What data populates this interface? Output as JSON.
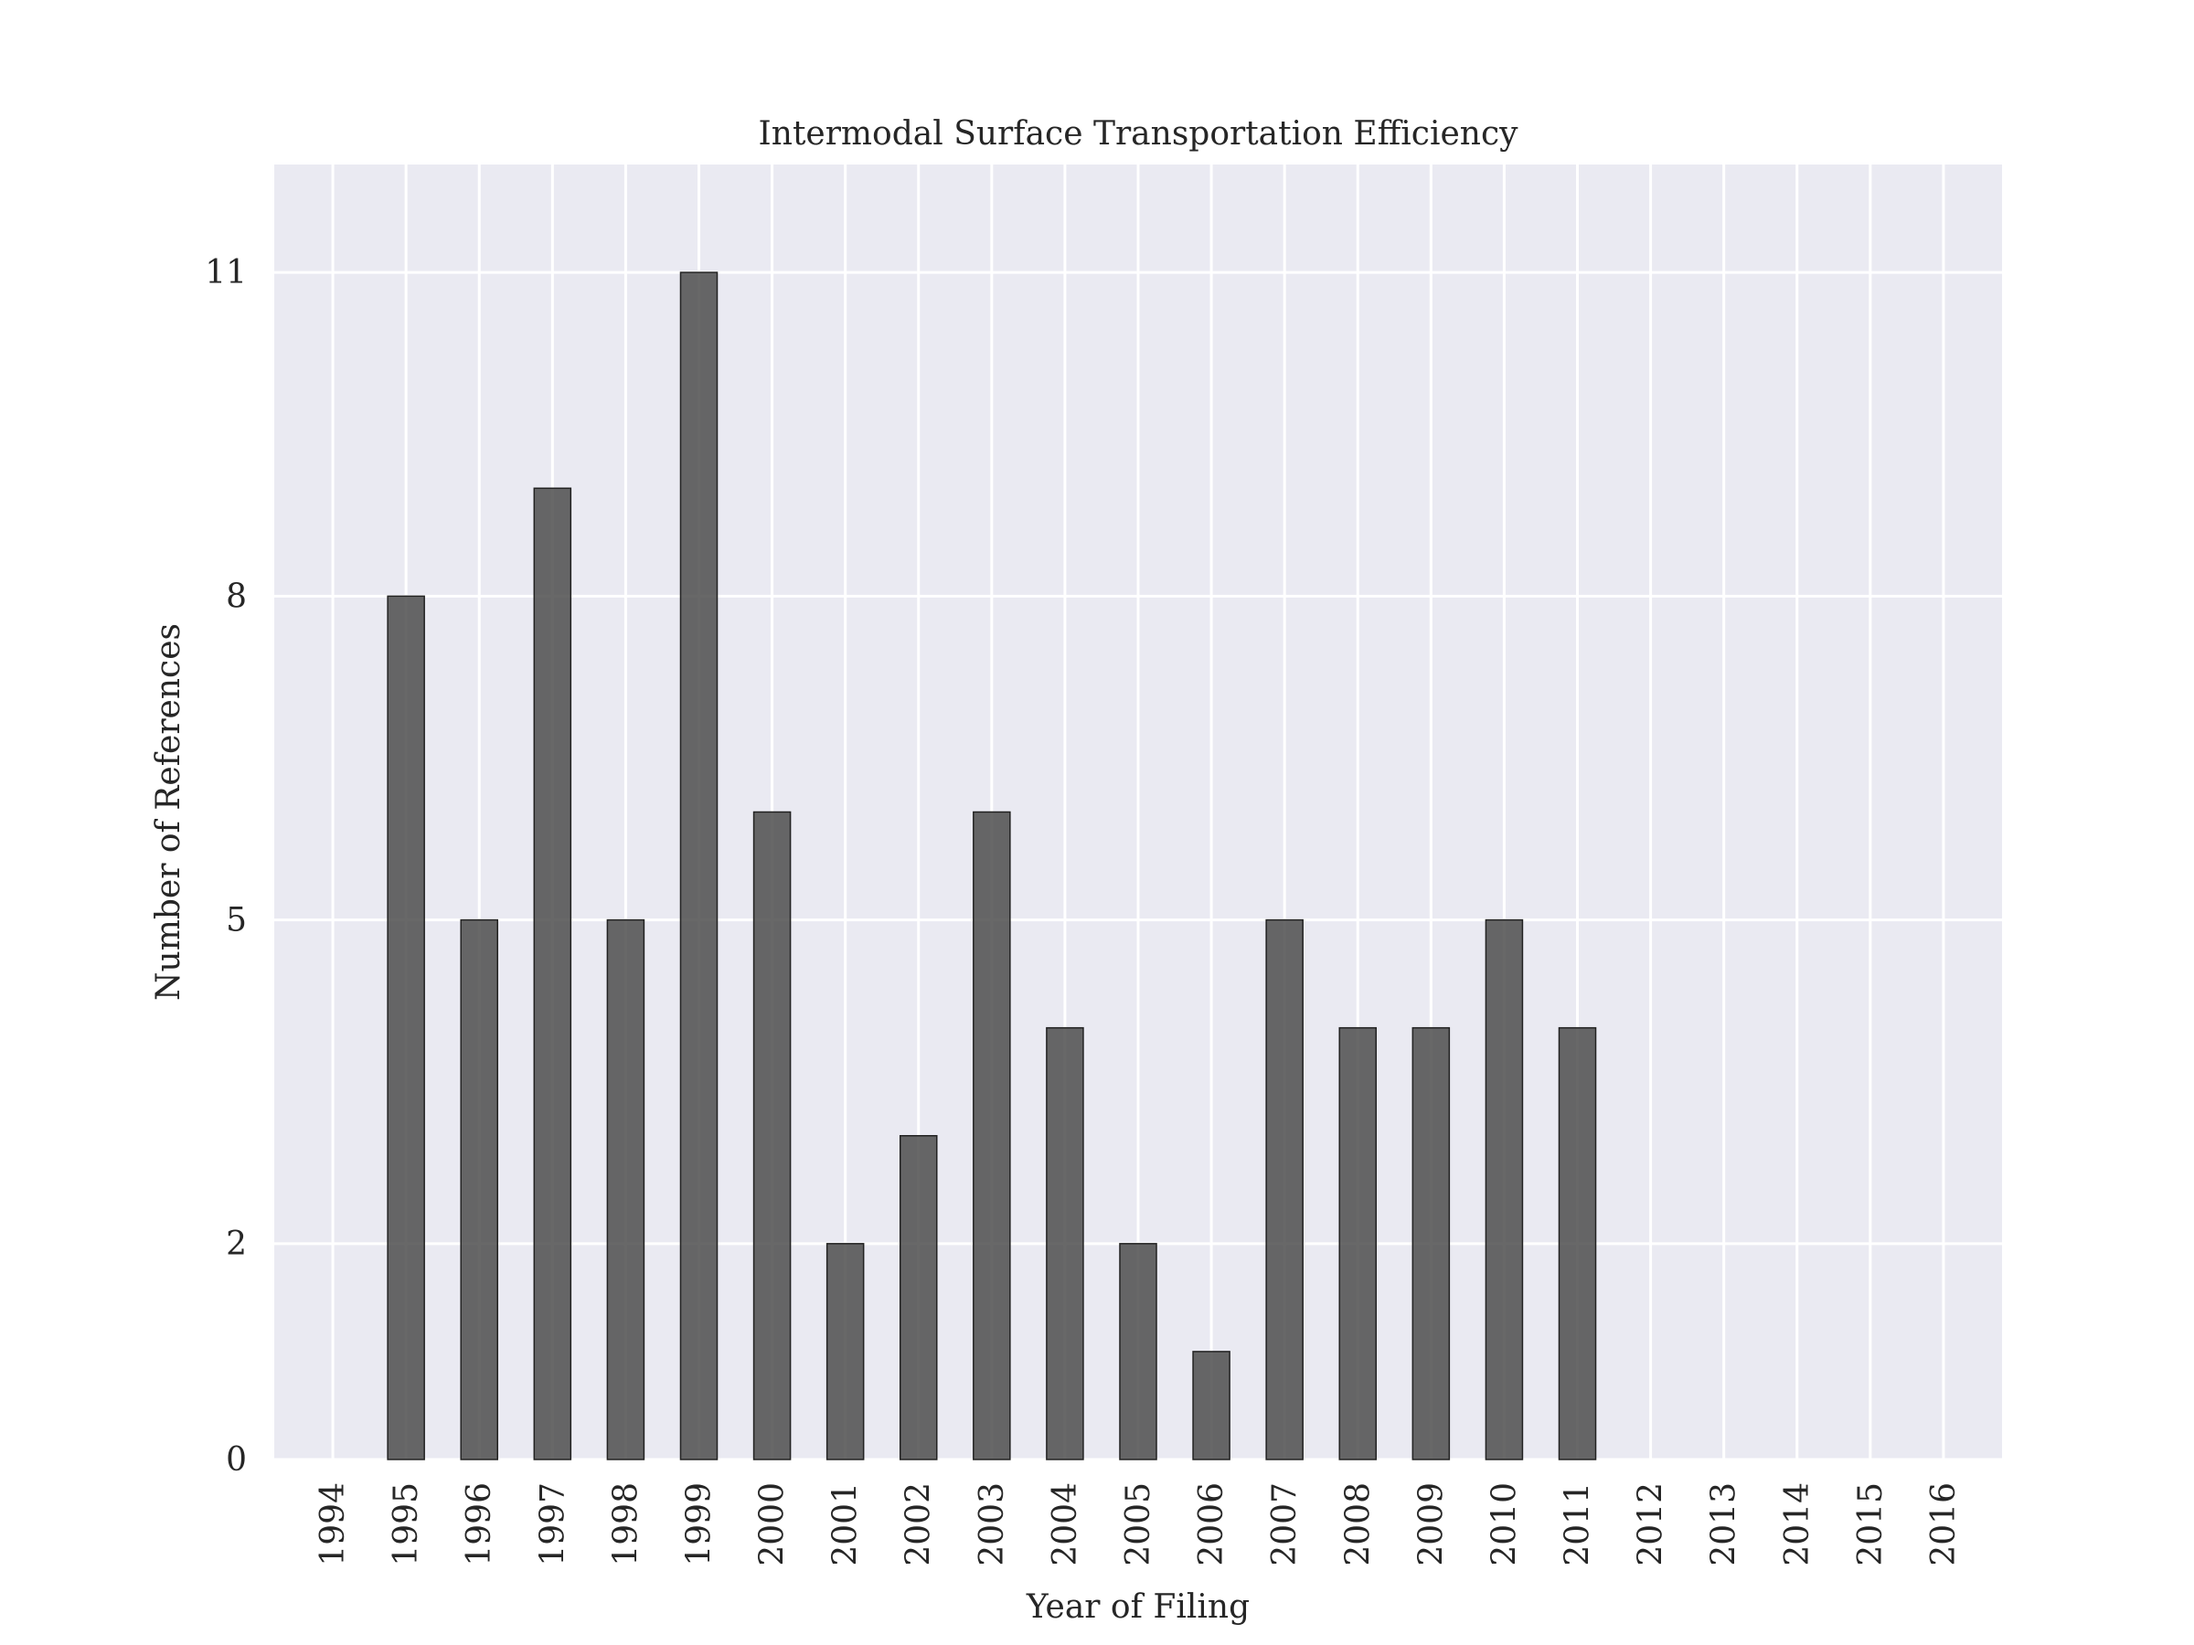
{
  "chart_data": {
    "type": "bar",
    "title": "Intermodal Surface Transportation Efficiency",
    "xlabel": "Year of Filing",
    "ylabel": "Number of References",
    "categories": [
      "1994",
      "1995",
      "1996",
      "1997",
      "1998",
      "1999",
      "2000",
      "2001",
      "2002",
      "2003",
      "2004",
      "2005",
      "2006",
      "2007",
      "2008",
      "2009",
      "2010",
      "2011",
      "2012",
      "2013",
      "2014",
      "2015",
      "2016"
    ],
    "values": [
      0,
      8,
      5,
      9,
      5,
      11,
      6,
      2,
      3,
      6,
      4,
      2,
      1,
      5,
      4,
      4,
      5,
      4,
      0,
      0,
      0,
      0,
      0
    ],
    "yticks": [
      0,
      2,
      5,
      8,
      11
    ],
    "ylim": [
      0,
      12
    ],
    "grid": true,
    "colors": {
      "background": "#EAEAF2",
      "bar": "#4D4D4D",
      "grid": "#FFFFFF",
      "text": "#262626"
    }
  }
}
